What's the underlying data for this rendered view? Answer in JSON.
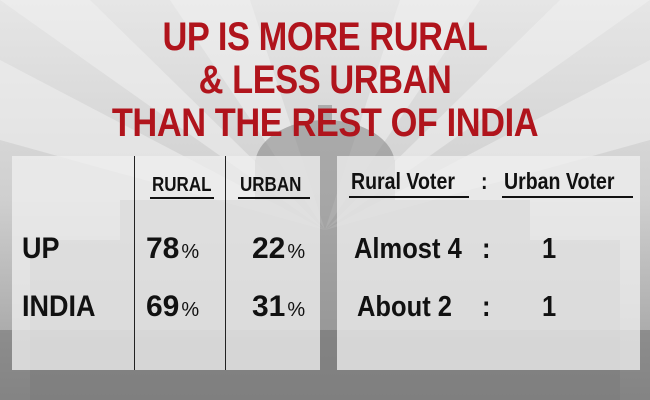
{
  "title": {
    "line1": "UP IS MORE RURAL",
    "line2": "& LESS URBAN",
    "line3": "THAN THE REST OF INDIA"
  },
  "colors": {
    "title": "#b0141c",
    "panel": "#eeeeee",
    "text": "#111111"
  },
  "table": {
    "headers": {
      "rural": "RURAL",
      "urban": "URBAN"
    },
    "rows": [
      {
        "label": "UP",
        "rural": "78",
        "urban": "22"
      },
      {
        "label": "INDIA",
        "rural": "69",
        "urban": "31"
      }
    ],
    "percent_sign": "%"
  },
  "ratio": {
    "headers": {
      "rural_voter": "Rural Voter",
      "separator": ":",
      "urban_voter": "Urban Voter"
    },
    "rows": [
      {
        "rural": "Almost 4",
        "separator": ":",
        "urban": "1"
      },
      {
        "rural": "About 2",
        "separator": ":",
        "urban": "1"
      }
    ]
  }
}
